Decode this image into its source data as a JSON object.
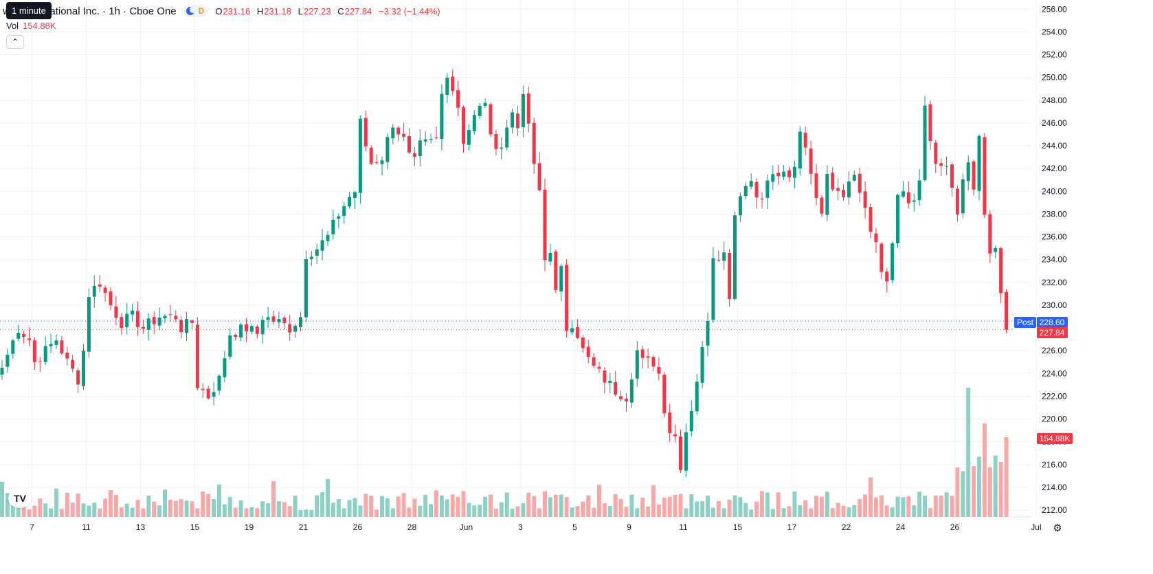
{
  "header": {
    "tooltip": "1 minute",
    "title": "well International Inc. · 1h · Cboe One",
    "session_badge": "D",
    "ohlc": {
      "o_label": "O",
      "o": "231.16",
      "h_label": "H",
      "h": "231.18",
      "l_label": "L",
      "l": "227.23",
      "c_label": "C",
      "c": "227.84",
      "change": "−3.32 (−1.44%)"
    },
    "volume_label": "Vol",
    "volume_value": "154.88K"
  },
  "price_labels": {
    "post_tag": "Post",
    "post_price": "228.60",
    "last_price": "227.84",
    "volume_tag": "154.88K"
  },
  "colors": {
    "up": "#089981",
    "down": "#f23645",
    "up_volume": "#8dd1c6",
    "down_volume": "#f7a9a7",
    "post_line": "#2962ff",
    "grid": "#f0f3fa"
  },
  "icons": [
    "tradingview-logo-icon",
    "settings-gear-icon",
    "chevron-up-icon"
  ],
  "chart_data": {
    "type": "candlestick",
    "interval": "1h",
    "y_axis": {
      "ticks": [
        212,
        214,
        216,
        218,
        220,
        222,
        224,
        226,
        228,
        230,
        232,
        234,
        236,
        238,
        240,
        242,
        244,
        246,
        248,
        250,
        252,
        254,
        256
      ],
      "tick_labels": [
        "212.00",
        "214.00",
        "216.00",
        "218.00",
        "220.00",
        "222.00",
        "224.00",
        "226.00",
        "228.00",
        "230.00",
        "232.00",
        "234.00",
        "236.00",
        "238.00",
        "240.00",
        "242.00",
        "244.00",
        "246.00",
        "248.00",
        "250.00",
        "252.00",
        "254.00",
        "256.00"
      ],
      "range": [
        211.4,
        256.8
      ],
      "position": "right"
    },
    "x_axis": {
      "tick_labels": [
        "7",
        "11",
        "13",
        "15",
        "19",
        "21",
        "26",
        "28",
        "Jun",
        "3",
        "5",
        "9",
        "11",
        "15",
        "17",
        "22",
        "24",
        "26",
        "Jul"
      ],
      "tick_bar_index": [
        5.5,
        15.5,
        25.5,
        35.5,
        45.5,
        55.5,
        65.5,
        75.5,
        85.5,
        95.5,
        105.5,
        115.5,
        125.5,
        135.5,
        145.5,
        155.5,
        165.5,
        175.5,
        190.5
      ]
    },
    "reference_lines": [
      {
        "label": "Post",
        "value": 228.6,
        "color": "#2962ff",
        "style": "dotted"
      },
      {
        "label": "Last",
        "value": 227.84,
        "color": "#f23645",
        "style": "dotted"
      }
    ],
    "anchors": [
      [
        0,
        224.5
      ],
      [
        3,
        228
      ],
      [
        5,
        227
      ],
      [
        6,
        225
      ],
      [
        9,
        226.5
      ],
      [
        10,
        227
      ],
      [
        12,
        225
      ],
      [
        14,
        223.5
      ],
      [
        15,
        226
      ],
      [
        16,
        231
      ],
      [
        18,
        232
      ],
      [
        20,
        230
      ],
      [
        22,
        228.5
      ],
      [
        24,
        229
      ],
      [
        26,
        228
      ],
      [
        29,
        229
      ],
      [
        32,
        229
      ],
      [
        33,
        228
      ],
      [
        35,
        228.5
      ],
      [
        36,
        223
      ],
      [
        38,
        222
      ],
      [
        40,
        223.5
      ],
      [
        42,
        227.5
      ],
      [
        45,
        228
      ],
      [
        47,
        227.5
      ],
      [
        48,
        229
      ],
      [
        51,
        228.5
      ],
      [
        53,
        228
      ],
      [
        55,
        229
      ],
      [
        56,
        234.5
      ],
      [
        58,
        235
      ],
      [
        60,
        236
      ],
      [
        62,
        238
      ],
      [
        64,
        239.5
      ],
      [
        65,
        240
      ],
      [
        66,
        246
      ],
      [
        67,
        244
      ],
      [
        68,
        242.5
      ],
      [
        70,
        243
      ],
      [
        72,
        246
      ],
      [
        74,
        244.5
      ],
      [
        75,
        243
      ],
      [
        76,
        242.5
      ],
      [
        77,
        244
      ],
      [
        80,
        244.5
      ],
      [
        81,
        248.5
      ],
      [
        82,
        250.5
      ],
      [
        84,
        247.5
      ],
      [
        85,
        244.5
      ],
      [
        87,
        246.5
      ],
      [
        89,
        248
      ],
      [
        90,
        244.5
      ],
      [
        92,
        244
      ],
      [
        94,
        247
      ],
      [
        95,
        246
      ],
      [
        96,
        248
      ],
      [
        97,
        246
      ],
      [
        98,
        242
      ],
      [
        99,
        240
      ],
      [
        100,
        234
      ],
      [
        101,
        235
      ],
      [
        102,
        231
      ],
      [
        103,
        233
      ],
      [
        104,
        228
      ],
      [
        105,
        228.5
      ],
      [
        106,
        227.5
      ],
      [
        107,
        226
      ],
      [
        109,
        224.5
      ],
      [
        111,
        223.5
      ],
      [
        113,
        222.5
      ],
      [
        115,
        222
      ],
      [
        116,
        224
      ],
      [
        117,
        226
      ],
      [
        118,
        225
      ],
      [
        120,
        225
      ],
      [
        121,
        224
      ],
      [
        122,
        221
      ],
      [
        123,
        219
      ],
      [
        124,
        218.5
      ],
      [
        125,
        216
      ],
      [
        126,
        219
      ],
      [
        127,
        221
      ],
      [
        128,
        223.5
      ],
      [
        129,
        226
      ],
      [
        130,
        229
      ],
      [
        131,
        234.5
      ],
      [
        133,
        234.5
      ],
      [
        134,
        231
      ],
      [
        135,
        238
      ],
      [
        136,
        240
      ],
      [
        138,
        241
      ],
      [
        140,
        239
      ],
      [
        141,
        241
      ],
      [
        143,
        241.5
      ],
      [
        145,
        241
      ],
      [
        146,
        242
      ],
      [
        147,
        245.5
      ],
      [
        148,
        244
      ],
      [
        149,
        242
      ],
      [
        150,
        239
      ],
      [
        151,
        238.5
      ],
      [
        152,
        242
      ],
      [
        153,
        240.5
      ],
      [
        155,
        240
      ],
      [
        157,
        241.5
      ],
      [
        158,
        240
      ],
      [
        159,
        238.5
      ],
      [
        160,
        236
      ],
      [
        161,
        235.5
      ],
      [
        162,
        233
      ],
      [
        163,
        232.5
      ],
      [
        164,
        235
      ],
      [
        165,
        239.5
      ],
      [
        166,
        240
      ],
      [
        167,
        238.5
      ],
      [
        168,
        239
      ],
      [
        169,
        241
      ],
      [
        170,
        247
      ],
      [
        171,
        244
      ],
      [
        172,
        242.5
      ],
      [
        174,
        242
      ],
      [
        175,
        240
      ],
      [
        176,
        237.5
      ],
      [
        177,
        241
      ],
      [
        178,
        242
      ],
      [
        179,
        240
      ],
      [
        180,
        244.5
      ],
      [
        181,
        238
      ],
      [
        182,
        235
      ],
      [
        183,
        234.5
      ],
      [
        184,
        231
      ],
      [
        185,
        227.84
      ]
    ],
    "volume": {
      "unit": "shares",
      "last": 154880,
      "peaks_k": {
        "top_bar": 230,
        "secondary": 200
      }
    }
  }
}
